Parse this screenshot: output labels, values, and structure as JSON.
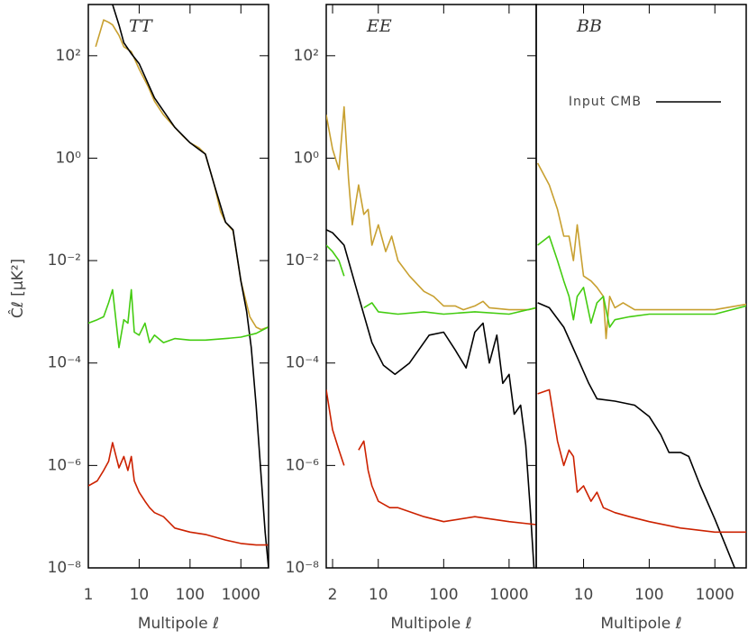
{
  "chart_data": [
    {
      "type": "line",
      "title": "TT",
      "xlabel": "Multipole ℓ",
      "ylabel": "Ĉℓ [μK²]",
      "xscale": "log",
      "yscale": "log",
      "xlim": [
        1,
        3500
      ],
      "ylim": [
        1e-08,
        1000
      ],
      "xticks": [
        1,
        10,
        100,
        1000
      ],
      "yticks": [
        {
          "value": 100,
          "label": "10²"
        },
        {
          "value": 1,
          "label": "10⁰"
        },
        {
          "value": 0.01,
          "label": "10⁻²"
        },
        {
          "value": 0.0001,
          "label": "10⁻⁴"
        },
        {
          "value": 1e-06,
          "label": "10⁻⁶"
        },
        {
          "value": 1e-08,
          "label": "10⁻⁸"
        }
      ],
      "series": [
        {
          "color": "#c8a030",
          "x": [
            1.4,
            2,
            2.5,
            3,
            4,
            5,
            7,
            10,
            15,
            20,
            30,
            50,
            70,
            100,
            150,
            200,
            300,
            400,
            500,
            700,
            1000,
            1500,
            2000,
            2500,
            3400
          ],
          "values": [
            150,
            500,
            450,
            400,
            250,
            150,
            120,
            55,
            25,
            13,
            7,
            4,
            2.8,
            2,
            1.6,
            1.2,
            0.3,
            0.09,
            0.056,
            0.038,
            0.004,
            0.0008,
            0.0005,
            0.00045,
            0.0005
          ]
        },
        {
          "name": "Input CMB",
          "color": "#000000",
          "x": [
            3,
            4,
            5,
            7,
            10,
            20,
            50,
            100,
            200,
            300,
            500,
            700,
            1000,
            1300,
            1600,
            2000,
            2500,
            3000,
            3500
          ],
          "values": [
            1000,
            400,
            180,
            110,
            70,
            15,
            4,
            2,
            1.2,
            0.3,
            0.056,
            0.04,
            0.004,
            0.001,
            0.0002,
            1.4e-05,
            6e-07,
            5e-08,
            1e-08
          ]
        },
        {
          "color": "#44cc11",
          "x": [
            1,
            1.5,
            2,
            2.5,
            3,
            4,
            5,
            6,
            7,
            8,
            10,
            13,
            16,
            20,
            30,
            50,
            100,
            200,
            500,
            1000,
            2000,
            3400
          ],
          "values": [
            0.0006,
            0.0007,
            0.0008,
            0.0015,
            0.0027,
            0.0002,
            0.0007,
            0.0006,
            0.0027,
            0.0004,
            0.00035,
            0.0006,
            0.00025,
            0.00035,
            0.00025,
            0.0003,
            0.00028,
            0.00028,
            0.0003,
            0.00032,
            0.00038,
            0.0005
          ]
        },
        {
          "color": "#cc2200",
          "x": [
            1,
            1.5,
            2,
            2.5,
            3,
            4,
            5,
            6,
            7,
            8,
            10,
            13,
            16,
            20,
            30,
            50,
            100,
            200,
            500,
            1000,
            2000,
            3400
          ],
          "values": [
            4e-07,
            5e-07,
            8e-07,
            1.2e-06,
            2.8e-06,
            9e-07,
            1.5e-06,
            8e-07,
            1.5e-06,
            5e-07,
            3e-07,
            2e-07,
            1.5e-07,
            1.2e-07,
            1e-07,
            6e-08,
            5e-08,
            4.5e-08,
            3.5e-08,
            3e-08,
            2.8e-08,
            2.8e-08
          ]
        }
      ]
    },
    {
      "type": "line",
      "title": "EE",
      "xlabel": "Multipole ℓ",
      "xscale": "log",
      "yscale": "log",
      "xlim": [
        1.6,
        2600
      ],
      "ylim": [
        1e-08,
        1000
      ],
      "xticks": [
        2,
        10,
        100,
        1000
      ],
      "yticks": [
        {
          "value": 100,
          "label": "10²"
        },
        {
          "value": 1,
          "label": "10⁰"
        },
        {
          "value": 0.01,
          "label": "10⁻²"
        },
        {
          "value": 0.0001,
          "label": "10⁻⁴"
        },
        {
          "value": 1e-06,
          "label": "10⁻⁶"
        },
        {
          "value": 1e-08,
          "label": "10⁻⁸"
        }
      ],
      "series": [
        {
          "color": "#c8a030",
          "x": [
            1.6,
            2,
            2.5,
            3,
            3.5,
            4,
            5,
            6,
            7,
            8,
            10,
            13,
            16,
            20,
            30,
            50,
            70,
            100,
            150,
            200,
            300,
            400,
            500,
            1000,
            2000,
            2600
          ],
          "values": [
            7,
            1.5,
            0.6,
            10,
            0.4,
            0.05,
            0.3,
            0.08,
            0.1,
            0.02,
            0.05,
            0.015,
            0.03,
            0.01,
            0.005,
            0.0025,
            0.002,
            0.0013,
            0.0013,
            0.0011,
            0.0013,
            0.0016,
            0.0012,
            0.0011,
            0.0011,
            0.0012
          ]
        },
        {
          "color": "#44cc11",
          "x": [
            1.6,
            2,
            2.5,
            3,
            4,
            6,
            8,
            10,
            20,
            50,
            100,
            300,
            1000,
            2600
          ],
          "values": [
            0.02,
            0.015,
            0.01,
            0.005,
            null,
            0.0012,
            0.0015,
            0.001,
            0.0009,
            0.001,
            0.0009,
            0.001,
            0.0009,
            0.0012
          ]
        },
        {
          "name": "Input CMB",
          "color": "#000000",
          "x": [
            1.6,
            2,
            3,
            5,
            8,
            12,
            18,
            30,
            60,
            100,
            150,
            220,
            300,
            400,
            500,
            650,
            800,
            1000,
            1200,
            1500,
            1800,
            2100,
            2400
          ],
          "values": [
            0.04,
            0.035,
            0.02,
            0.002,
            0.00025,
            9e-05,
            6e-05,
            0.0001,
            0.00035,
            0.0004,
            0.00018,
            8e-05,
            0.0004,
            0.0006,
            0.0001,
            0.00035,
            4e-05,
            6e-05,
            1e-05,
            1.5e-05,
            2.5e-06,
            1.5e-07,
            1e-08
          ]
        },
        {
          "color": "#cc2200",
          "x": [
            1.6,
            2,
            2.5,
            3,
            4,
            5,
            6,
            7,
            8,
            10,
            15,
            20,
            50,
            100,
            300,
            1000,
            2600
          ],
          "values": [
            3e-05,
            5e-06,
            2e-06,
            1e-06,
            null,
            2e-06,
            3e-06,
            8e-07,
            4e-07,
            2e-07,
            1.5e-07,
            1.5e-07,
            1e-07,
            8e-08,
            1e-07,
            8e-08,
            7e-08
          ]
        }
      ]
    },
    {
      "type": "line",
      "title": "BB",
      "xlabel": "Multipole ℓ",
      "xscale": "log",
      "yscale": "log",
      "xlim": [
        1.9,
        3000
      ],
      "ylim": [
        1e-08,
        1000
      ],
      "xticks": [
        10,
        100,
        1000
      ],
      "legend": "upper right",
      "series": [
        {
          "color": "#c8a030",
          "x": [
            2,
            3,
            4,
            5,
            6,
            7,
            8,
            10,
            13,
            16,
            20,
            22,
            25,
            30,
            40,
            60,
            100,
            300,
            1000,
            3000
          ],
          "values": [
            0.8,
            0.3,
            0.1,
            0.03,
            0.03,
            0.01,
            0.05,
            0.005,
            0.004,
            0.003,
            0.002,
            0.0003,
            0.002,
            0.0012,
            0.0015,
            0.0011,
            0.0011,
            0.0011,
            0.0011,
            0.0014
          ]
        },
        {
          "color": "#44cc11",
          "x": [
            2,
            3,
            4,
            5,
            6,
            7,
            8,
            10,
            13,
            16,
            20,
            25,
            30,
            50,
            100,
            300,
            1000,
            3000
          ],
          "values": [
            0.02,
            0.03,
            0.01,
            0.004,
            0.002,
            0.0007,
            0.002,
            0.003,
            0.0006,
            0.0015,
            0.002,
            0.0005,
            0.0007,
            0.0008,
            0.0009,
            0.0009,
            0.0009,
            0.0013
          ]
        },
        {
          "name": "Input CMB",
          "color": "#000000",
          "x": [
            2,
            3,
            5,
            8,
            12,
            16,
            30,
            60,
            100,
            150,
            200,
            300,
            400,
            600,
            1000,
            1500,
            2000
          ],
          "values": [
            0.0015,
            0.0012,
            0.0005,
            0.00013,
            4e-05,
            2e-05,
            1.8e-05,
            1.5e-05,
            9e-06,
            4e-06,
            1.8e-06,
            1.8e-06,
            1.5e-06,
            4e-07,
            9e-08,
            2.5e-08,
            1e-08
          ]
        },
        {
          "color": "#cc2200",
          "x": [
            2,
            3,
            4,
            5,
            6,
            7,
            8,
            10,
            13,
            16,
            20,
            30,
            50,
            100,
            300,
            1000,
            3000
          ],
          "values": [
            2.5e-05,
            3e-05,
            3e-06,
            1e-06,
            2e-06,
            1.5e-06,
            3e-07,
            4e-07,
            2e-07,
            3e-07,
            1.5e-07,
            1.2e-07,
            1e-07,
            8e-08,
            6e-08,
            5e-08,
            5e-08
          ]
        }
      ]
    }
  ]
}
